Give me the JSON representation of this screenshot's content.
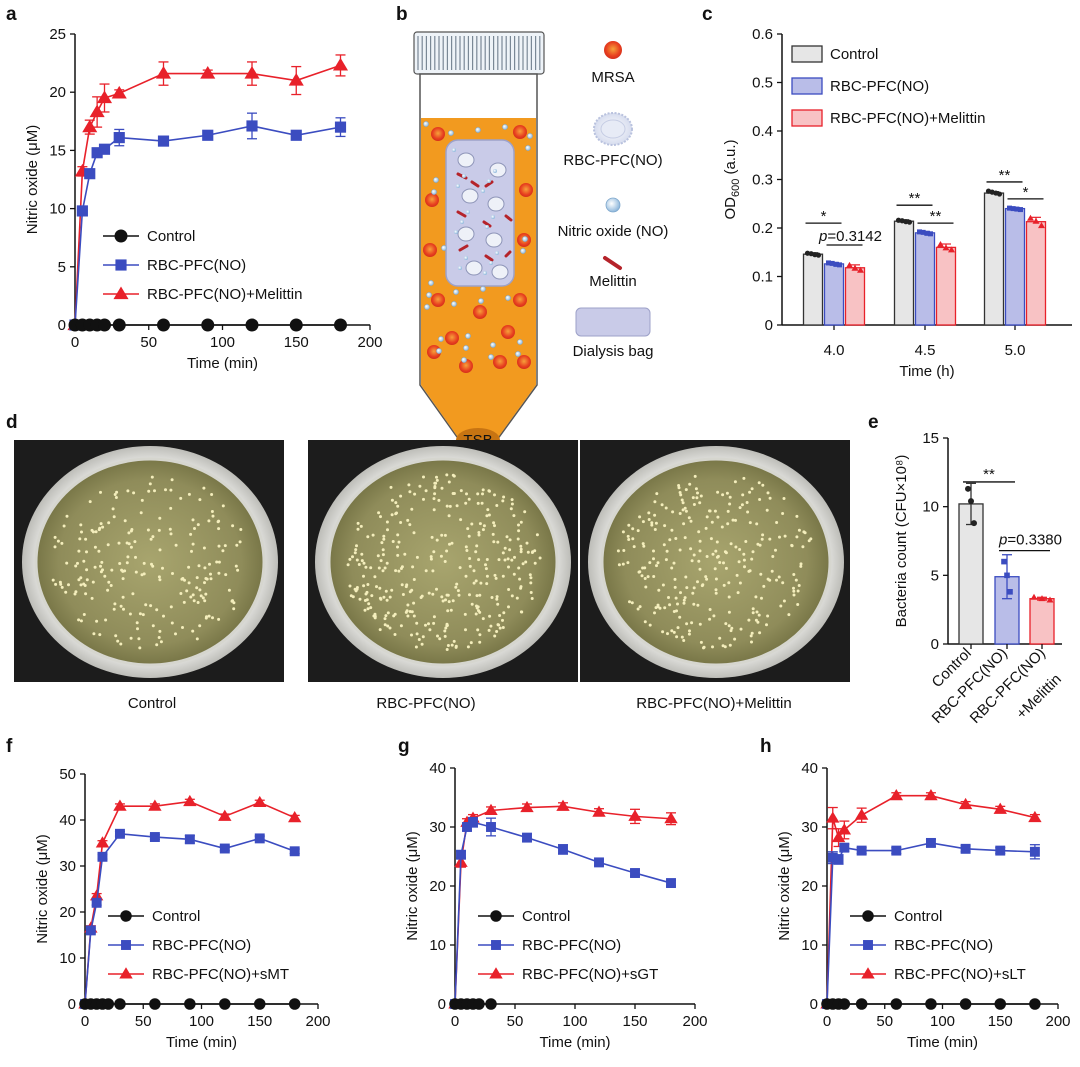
{
  "panels": {
    "a": "a",
    "b": "b",
    "c": "c",
    "d": "d",
    "e": "e",
    "f": "f",
    "g": "g",
    "h": "h"
  },
  "colors": {
    "control": "#111111",
    "rbc": "#3b4cc0",
    "mel": "#e8212a",
    "bar_control": "#e6e6e6",
    "bar_rbc": "#b9bde8",
    "bar_mel": "#f8c2c4",
    "medium": "#f29a1f",
    "bag": "#c9cbe8"
  },
  "schematic": {
    "legend": [
      "MRSA",
      "RBC-PFC(NO)",
      "Nitric oxide (NO)",
      "Melittin",
      "Dialysis bag"
    ],
    "tube_label": "TSB"
  },
  "plates": {
    "captions": [
      "Control",
      "RBC-PFC(NO)",
      "RBC-PFC(NO)+Melittin"
    ]
  },
  "chart_data": [
    {
      "id": "a",
      "type": "line",
      "xlabel": "Time (min)",
      "ylabel": "Nitric oxide (μM)",
      "xlim": [
        0,
        200
      ],
      "ylim": [
        0,
        25
      ],
      "xticks": [
        0,
        50,
        100,
        150,
        200
      ],
      "yticks": [
        0,
        5,
        10,
        15,
        20,
        25
      ],
      "legend_position": "center",
      "series": [
        {
          "name": "Control",
          "marker": "circle",
          "color": "#111111",
          "x": [
            0,
            5,
            10,
            15,
            20,
            30,
            60,
            90,
            120,
            150,
            180
          ],
          "y": [
            0,
            0,
            0,
            0,
            0,
            0,
            0,
            0,
            0,
            0,
            0
          ],
          "err": [
            0,
            0,
            0,
            0,
            0,
            0,
            0,
            0,
            0,
            0,
            0
          ]
        },
        {
          "name": "RBC-PFC(NO)",
          "marker": "square",
          "color": "#3b4cc0",
          "x": [
            0,
            5,
            10,
            15,
            20,
            30,
            60,
            90,
            120,
            150,
            180
          ],
          "y": [
            0,
            9.8,
            13.0,
            14.8,
            15.1,
            16.1,
            15.8,
            16.3,
            17.1,
            16.3,
            17.0
          ],
          "err": [
            0,
            0.3,
            0.3,
            0.3,
            0.3,
            0.7,
            0.3,
            0.3,
            1.1,
            0.3,
            0.8
          ]
        },
        {
          "name": "RBC-PFC(NO)+Melittin",
          "marker": "triangle",
          "color": "#e8212a",
          "x": [
            0,
            5,
            10,
            15,
            20,
            30,
            60,
            90,
            120,
            150,
            180
          ],
          "y": [
            0,
            13.2,
            17.0,
            18.3,
            19.5,
            19.9,
            21.6,
            21.6,
            21.6,
            21.0,
            22.3
          ],
          "err": [
            0,
            0.4,
            0.6,
            1.3,
            1.2,
            0.3,
            1.0,
            0.3,
            1.0,
            1.2,
            0.9
          ]
        }
      ]
    },
    {
      "id": "c",
      "type": "bar",
      "xlabel": "Time (h)",
      "ylabel": "OD600 (a.u.)",
      "ylabel_main": "OD",
      "ylabel_sub": "600",
      "ylabel_unit": " (a.u.)",
      "ylim": [
        0,
        0.6
      ],
      "yticks": [
        "0",
        "0.1",
        "0.2",
        "0.3",
        "0.4",
        "0.5",
        "0.6"
      ],
      "categories": [
        "4.0",
        "4.5",
        "5.0"
      ],
      "legend_position": "top-left",
      "series": [
        {
          "name": "Control",
          "values": [
            0.146,
            0.214,
            0.272
          ],
          "err": [
            0.003,
            0.003,
            0.003
          ],
          "points": [
            [
              0.148,
              0.147,
              0.145,
              0.144
            ],
            [
              0.216,
              0.215,
              0.213,
              0.212
            ],
            [
              0.276,
              0.274,
              0.272,
              0.27
            ]
          ]
        },
        {
          "name": "RBC-PFC(NO)",
          "values": [
            0.126,
            0.19,
            0.24
          ],
          "err": [
            0.003,
            0.003,
            0.002
          ],
          "points": [
            [
              0.128,
              0.127,
              0.125,
              0.124
            ],
            [
              0.192,
              0.191,
              0.189,
              0.188
            ],
            [
              0.241,
              0.24,
              0.239,
              0.238
            ]
          ]
        },
        {
          "name": "RBC-PFC(NO)+Melittin",
          "values": [
            0.118,
            0.16,
            0.213
          ],
          "err": [
            0.006,
            0.007,
            0.009
          ],
          "points": [
            [
              0.123,
              0.117,
              0.113
            ],
            [
              0.166,
              0.159,
              0.155
            ],
            [
              0.22,
              0.214,
              0.205
            ]
          ]
        }
      ],
      "annotations": [
        {
          "text": "*",
          "group": 0,
          "from": 0,
          "to": 1,
          "y": 0.21
        },
        {
          "text": "p=0.3142",
          "italic_prefix": "p",
          "group": 0,
          "from": 1,
          "to": 2,
          "y": 0.165
        },
        {
          "text": "**",
          "group": 1,
          "from": 0,
          "to": 1,
          "y": 0.247
        },
        {
          "text": "**",
          "group": 1,
          "from": 1,
          "to": 2,
          "y": 0.21
        },
        {
          "text": "**",
          "group": 2,
          "from": 0,
          "to": 1,
          "y": 0.295
        },
        {
          "text": "*",
          "group": 2,
          "from": 1,
          "to": 2,
          "y": 0.26
        }
      ]
    },
    {
      "id": "e",
      "type": "bar",
      "ylabel": "Bacteria count (CFU×10⁸)",
      "ylim": [
        0,
        15
      ],
      "yticks": [
        0,
        5,
        10,
        15
      ],
      "categories": [
        "Control",
        "RBC-PFC(NO)",
        "RBC-PFC(NO)\n+Melittin"
      ],
      "category_labels": [
        "Control",
        "RBC-PFC(NO)",
        "RBC-PFC(NO)",
        "+Melittin"
      ],
      "values": [
        10.2,
        4.9,
        3.3
      ],
      "err": [
        1.5,
        1.6,
        0.1
      ],
      "points": [
        [
          11.3,
          10.4,
          8.8
        ],
        [
          6.0,
          5.0,
          3.8
        ],
        [
          3.4,
          3.3,
          3.2
        ]
      ],
      "annotations": [
        {
          "text": "**",
          "from": 0,
          "to": 1,
          "y": 11.8
        },
        {
          "text": "p=0.3380",
          "italic_prefix": "p",
          "from": 1,
          "to": 2,
          "y": 6.8
        }
      ]
    },
    {
      "id": "f",
      "type": "line",
      "xlabel": "Time (min)",
      "ylabel": "Nitric oxide (μM)",
      "xlim": [
        0,
        200
      ],
      "ylim": [
        0,
        50
      ],
      "xticks": [
        0,
        50,
        100,
        150,
        200
      ],
      "yticks": [
        0,
        10,
        20,
        30,
        40,
        50
      ],
      "series": [
        {
          "name": "Control",
          "marker": "circle",
          "color": "#111111",
          "x": [
            0,
            5,
            10,
            15,
            20,
            30,
            60,
            90,
            120,
            150,
            180
          ],
          "y": [
            0,
            0,
            0,
            0,
            0,
            0,
            0,
            0,
            0,
            0,
            0
          ],
          "err": [
            0,
            0,
            0,
            0,
            0,
            0,
            0,
            0,
            0,
            0,
            0
          ]
        },
        {
          "name": "RBC-PFC(NO)",
          "marker": "square",
          "color": "#3b4cc0",
          "x": [
            0,
            5,
            10,
            15,
            30,
            60,
            90,
            120,
            150,
            180
          ],
          "y": [
            0,
            16.0,
            22.0,
            32.0,
            37.0,
            36.3,
            35.8,
            33.8,
            36.0,
            33.2
          ],
          "err": [
            0,
            0.5,
            0.5,
            0.5,
            0.5,
            0.5,
            0.8,
            0.5,
            0.5,
            0.5
          ]
        },
        {
          "name": "RBC-PFC(NO)+sMT",
          "marker": "triangle",
          "color": "#e8212a",
          "x": [
            0,
            5,
            10,
            15,
            30,
            60,
            90,
            120,
            150,
            180
          ],
          "y": [
            0,
            16.5,
            23.5,
            35.0,
            43.0,
            43.0,
            44.0,
            40.8,
            43.8,
            40.5
          ],
          "err": [
            0,
            0.5,
            0.5,
            0.5,
            0.5,
            0.5,
            0.5,
            0.5,
            0.5,
            0.5
          ]
        }
      ]
    },
    {
      "id": "g",
      "type": "line",
      "xlabel": "Time (min)",
      "ylabel": "Nitric oxide (μM)",
      "xlim": [
        0,
        200
      ],
      "ylim": [
        0,
        40
      ],
      "xticks": [
        0,
        50,
        100,
        150,
        200
      ],
      "yticks": [
        0,
        10,
        20,
        30,
        40
      ],
      "series": [
        {
          "name": "Control",
          "marker": "circle",
          "color": "#111111",
          "x": [
            0,
            5,
            10,
            15,
            20,
            30
          ],
          "y": [
            0,
            0,
            0,
            0,
            0,
            0
          ],
          "err": [
            0,
            0,
            0,
            0,
            0,
            0
          ]
        },
        {
          "name": "RBC-PFC(NO)",
          "marker": "square",
          "color": "#3b4cc0",
          "x": [
            0,
            5,
            10,
            15,
            30,
            60,
            90,
            120,
            150,
            180
          ],
          "y": [
            0,
            25.3,
            30.0,
            30.8,
            30.0,
            28.2,
            26.2,
            24.0,
            22.2,
            20.5
          ],
          "err": [
            0,
            0.6,
            0.6,
            0.8,
            1.5,
            0.6,
            0.8,
            0.5,
            0.5,
            0.5
          ]
        },
        {
          "name": "RBC-PFC(NO)+sGT",
          "marker": "triangle",
          "color": "#e8212a",
          "x": [
            0,
            5,
            10,
            15,
            30,
            60,
            90,
            120,
            150,
            180
          ],
          "y": [
            0,
            24.0,
            30.8,
            31.5,
            32.8,
            33.3,
            33.5,
            32.5,
            31.8,
            31.4
          ],
          "err": [
            0,
            0.8,
            0.6,
            0.6,
            0.6,
            0.6,
            0.6,
            0.6,
            1.2,
            1.0
          ]
        }
      ]
    },
    {
      "id": "h",
      "type": "line",
      "xlabel": "Time (min)",
      "ylabel": "Nitric oxide (μM)",
      "xlim": [
        0,
        200
      ],
      "ylim": [
        0,
        40
      ],
      "xticks": [
        0,
        50,
        100,
        150,
        200
      ],
      "yticks": [
        0,
        10,
        20,
        30,
        40
      ],
      "series": [
        {
          "name": "Control",
          "marker": "circle",
          "color": "#111111",
          "x": [
            0,
            5,
            10,
            15,
            30,
            60,
            90,
            120,
            150,
            180
          ],
          "y": [
            0,
            0,
            0,
            0,
            0,
            0,
            0,
            0,
            0,
            0
          ],
          "err": [
            0,
            0,
            0,
            0,
            0,
            0,
            0,
            0,
            0,
            0
          ]
        },
        {
          "name": "RBC-PFC(NO)",
          "marker": "square",
          "color": "#3b4cc0",
          "x": [
            0,
            5,
            10,
            15,
            30,
            60,
            90,
            120,
            150,
            180
          ],
          "y": [
            0,
            24.8,
            24.5,
            26.5,
            26.0,
            26.0,
            27.3,
            26.3,
            26.0,
            25.8
          ],
          "err": [
            0,
            1.0,
            0.8,
            0.6,
            0.5,
            0.5,
            0.6,
            0.5,
            0.5,
            1.2
          ]
        },
        {
          "name": "RBC-PFC(NO)+sLT",
          "marker": "triangle",
          "color": "#e8212a",
          "x": [
            0,
            5,
            10,
            15,
            30,
            60,
            90,
            120,
            150,
            180
          ],
          "y": [
            0,
            31.5,
            28.2,
            29.5,
            32.0,
            35.3,
            35.3,
            33.8,
            33.0,
            31.6
          ],
          "err": [
            0,
            1.8,
            1.5,
            1.5,
            1.2,
            0.5,
            0.5,
            0.5,
            0.5,
            0.5
          ]
        }
      ]
    }
  ]
}
